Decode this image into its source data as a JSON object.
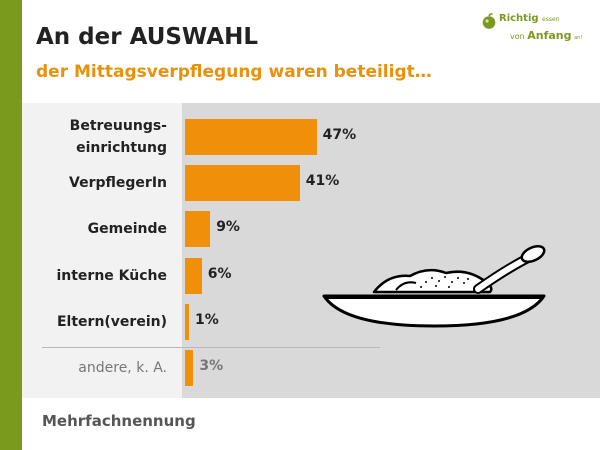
{
  "colors": {
    "accent": "#f0900a",
    "brand": "#7a9a1e",
    "muted": "#777777"
  },
  "logo": {
    "text1": "Richtig",
    "text1_small": "essen",
    "text2_pre": "von",
    "text2_big": "Anfang",
    "text2_post": "an!"
  },
  "footer": {
    "note": "Mehrfachnennung"
  },
  "icons": {
    "logo": "apple-icon",
    "illustration": "plate-with-spoon-icon"
  },
  "chart_data": {
    "type": "bar",
    "orientation": "horizontal",
    "title": "An der AUSWAHL",
    "subtitle": "der Mittagsverpflegung waren beteiligt…",
    "categories": [
      [
        "Betreuungs-",
        "einrichtung"
      ],
      [
        "VerpflegerIn"
      ],
      [
        "Gemeinde"
      ],
      [
        "interne Küche"
      ],
      [
        "Eltern(verein)"
      ],
      [
        "andere, k. A."
      ]
    ],
    "values": [
      47,
      41,
      9,
      6,
      1,
      3
    ],
    "value_labels": [
      "47%",
      "41%",
      "9%",
      "6%",
      "1%",
      "3%"
    ],
    "muted": [
      false,
      false,
      false,
      false,
      false,
      true
    ],
    "unit": "%",
    "xlim": [
      0,
      100
    ],
    "grid": false,
    "legend": "none"
  }
}
